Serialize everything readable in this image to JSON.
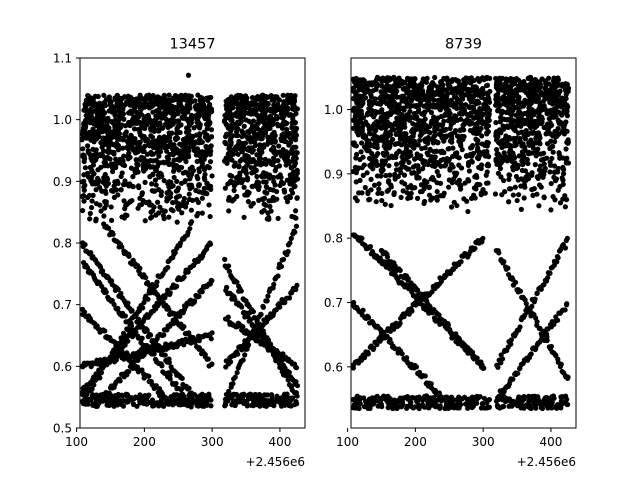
{
  "figure": {
    "background": "#ffffff"
  },
  "chart_data": [
    {
      "type": "scatter",
      "title": "13457",
      "xlabel": "",
      "ylabel": "",
      "xlim": [
        105,
        437
      ],
      "ylim": [
        0.5,
        1.1
      ],
      "x_offset_label": "+2.456e6",
      "x_ticks": [
        100,
        200,
        300,
        400
      ],
      "x_tick_labels": [
        "100",
        "200",
        "300",
        "400"
      ],
      "y_ticks": [
        0.5,
        0.6,
        0.7,
        0.8,
        0.9,
        1.0,
        1.1
      ],
      "y_tick_labels": [
        "0.5",
        "0.6",
        "0.7",
        "0.8",
        "0.9",
        "1.0",
        "1.1"
      ],
      "marker_color": "#000000",
      "observing_windows": [
        [
          108,
          300
        ],
        [
          318,
          426
        ]
      ],
      "dense_band": {
        "y_min": 0.83,
        "y_max": 1.04
      },
      "lower_bound": 0.535,
      "tracks": [
        {
          "x": [
            108,
            270
          ],
          "y": [
            0.8,
            0.555
          ]
        },
        {
          "x": [
            108,
            270
          ],
          "y": [
            0.77,
            0.535
          ]
        },
        {
          "x": [
            108,
            270
          ],
          "y": [
            0.54,
            0.83
          ]
        },
        {
          "x": [
            108,
            240
          ],
          "y": [
            0.69,
            0.54
          ]
        },
        {
          "x": [
            108,
            300
          ],
          "y": [
            0.56,
            0.8
          ]
        },
        {
          "x": [
            108,
            300
          ],
          "y": [
            0.6,
            0.65
          ]
        },
        {
          "x": [
            140,
            300
          ],
          "y": [
            0.83,
            0.6
          ]
        },
        {
          "x": [
            130,
            300
          ],
          "y": [
            0.54,
            0.74
          ]
        },
        {
          "x": [
            318,
            426
          ],
          "y": [
            0.54,
            0.83
          ]
        },
        {
          "x": [
            318,
            426
          ],
          "y": [
            0.77,
            0.55
          ]
        },
        {
          "x": [
            318,
            426
          ],
          "y": [
            0.68,
            0.6
          ]
        },
        {
          "x": [
            318,
            426
          ],
          "y": [
            0.6,
            0.73
          ]
        },
        {
          "x": [
            318,
            426
          ],
          "y": [
            0.73,
            0.57
          ]
        }
      ],
      "outliers": [
        {
          "x": 265,
          "y": 1.072
        }
      ]
    },
    {
      "type": "scatter",
      "title": "8739",
      "xlabel": "",
      "ylabel": "",
      "xlim": [
        105,
        437
      ],
      "ylim": [
        0.505,
        1.08
      ],
      "x_offset_label": "+2.456e6",
      "x_ticks": [
        100,
        200,
        300,
        400
      ],
      "x_tick_labels": [
        "100",
        "200",
        "300",
        "400"
      ],
      "y_ticks": [
        0.6,
        0.7,
        0.8,
        0.9,
        1.0
      ],
      "y_tick_labels": [
        "0.6",
        "0.7",
        "0.8",
        "0.9",
        "1.0"
      ],
      "marker_color": "#000000",
      "observing_windows": [
        [
          108,
          310
        ],
        [
          318,
          426
        ]
      ],
      "dense_band": {
        "y_min": 0.84,
        "y_max": 1.05
      },
      "lower_bound": 0.535,
      "tracks": [
        {
          "x": [
            108,
            300
          ],
          "y": [
            0.81,
            0.6
          ]
        },
        {
          "x": [
            108,
            300
          ],
          "y": [
            0.6,
            0.8
          ]
        },
        {
          "x": [
            150,
            300
          ],
          "y": [
            0.78,
            0.6
          ]
        },
        {
          "x": [
            108,
            250
          ],
          "y": [
            0.7,
            0.54
          ]
        },
        {
          "x": [
            320,
            426
          ],
          "y": [
            0.6,
            0.8
          ]
        },
        {
          "x": [
            320,
            426
          ],
          "y": [
            0.78,
            0.58
          ]
        },
        {
          "x": [
            320,
            426
          ],
          "y": [
            0.55,
            0.7
          ]
        }
      ],
      "outliers": []
    }
  ]
}
